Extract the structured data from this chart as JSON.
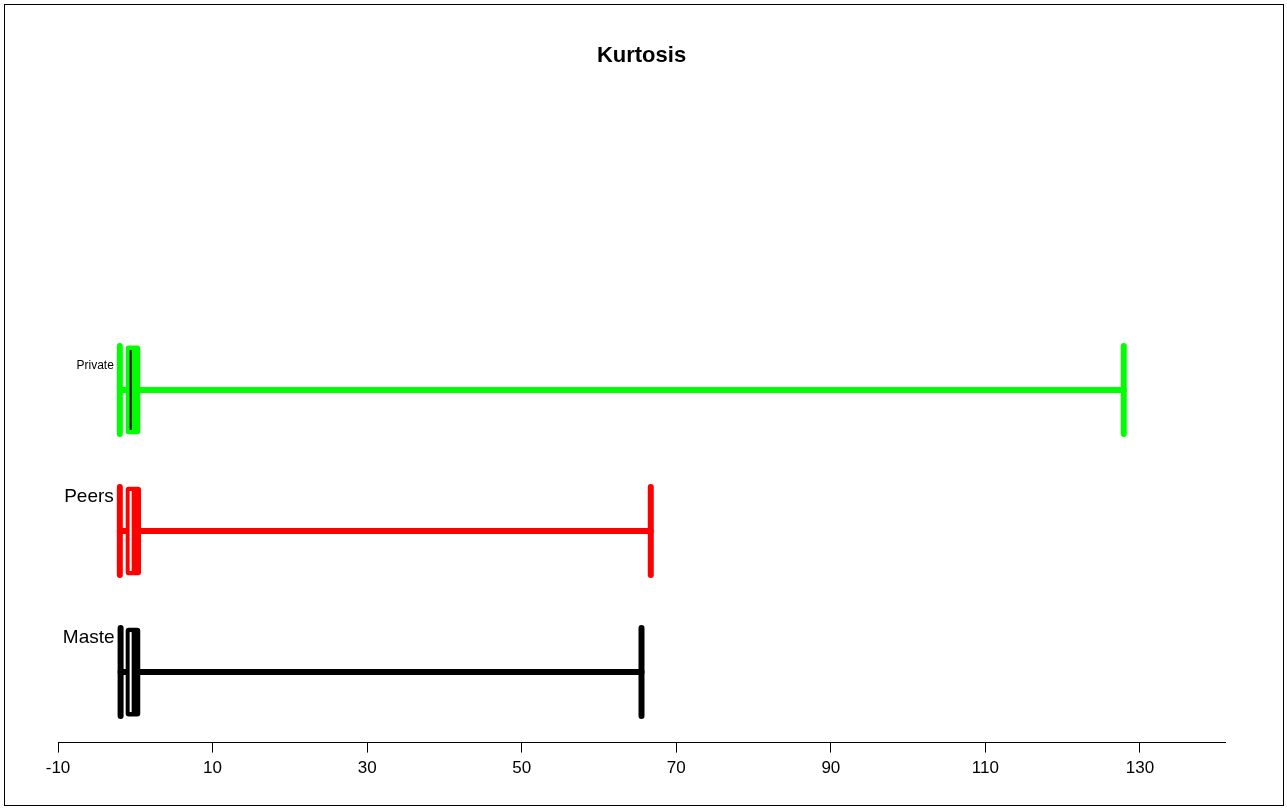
{
  "chart_data": {
    "type": "box",
    "title": "Kurtosis",
    "orientation": "horizontal",
    "categories": [
      "Private",
      "Peers",
      "Maste"
    ],
    "boxes": [
      {
        "low": -2.0,
        "q1": -1.2,
        "median": -0.6,
        "q3": 0.6,
        "high": 127.9
      },
      {
        "low": -2.0,
        "q1": -1.2,
        "median": -0.6,
        "q3": 0.7,
        "high": 66.7
      },
      {
        "low": -1.9,
        "q1": -1.2,
        "median": -0.6,
        "q3": 0.6,
        "high": 65.5
      }
    ],
    "colors": [
      "#00ff00",
      "#ff0000",
      "#000000"
    ],
    "xlim": [
      -10,
      141
    ],
    "xticks": [
      -10,
      10,
      30,
      50,
      70,
      90,
      110,
      130
    ],
    "grid": false,
    "legend": false
  }
}
